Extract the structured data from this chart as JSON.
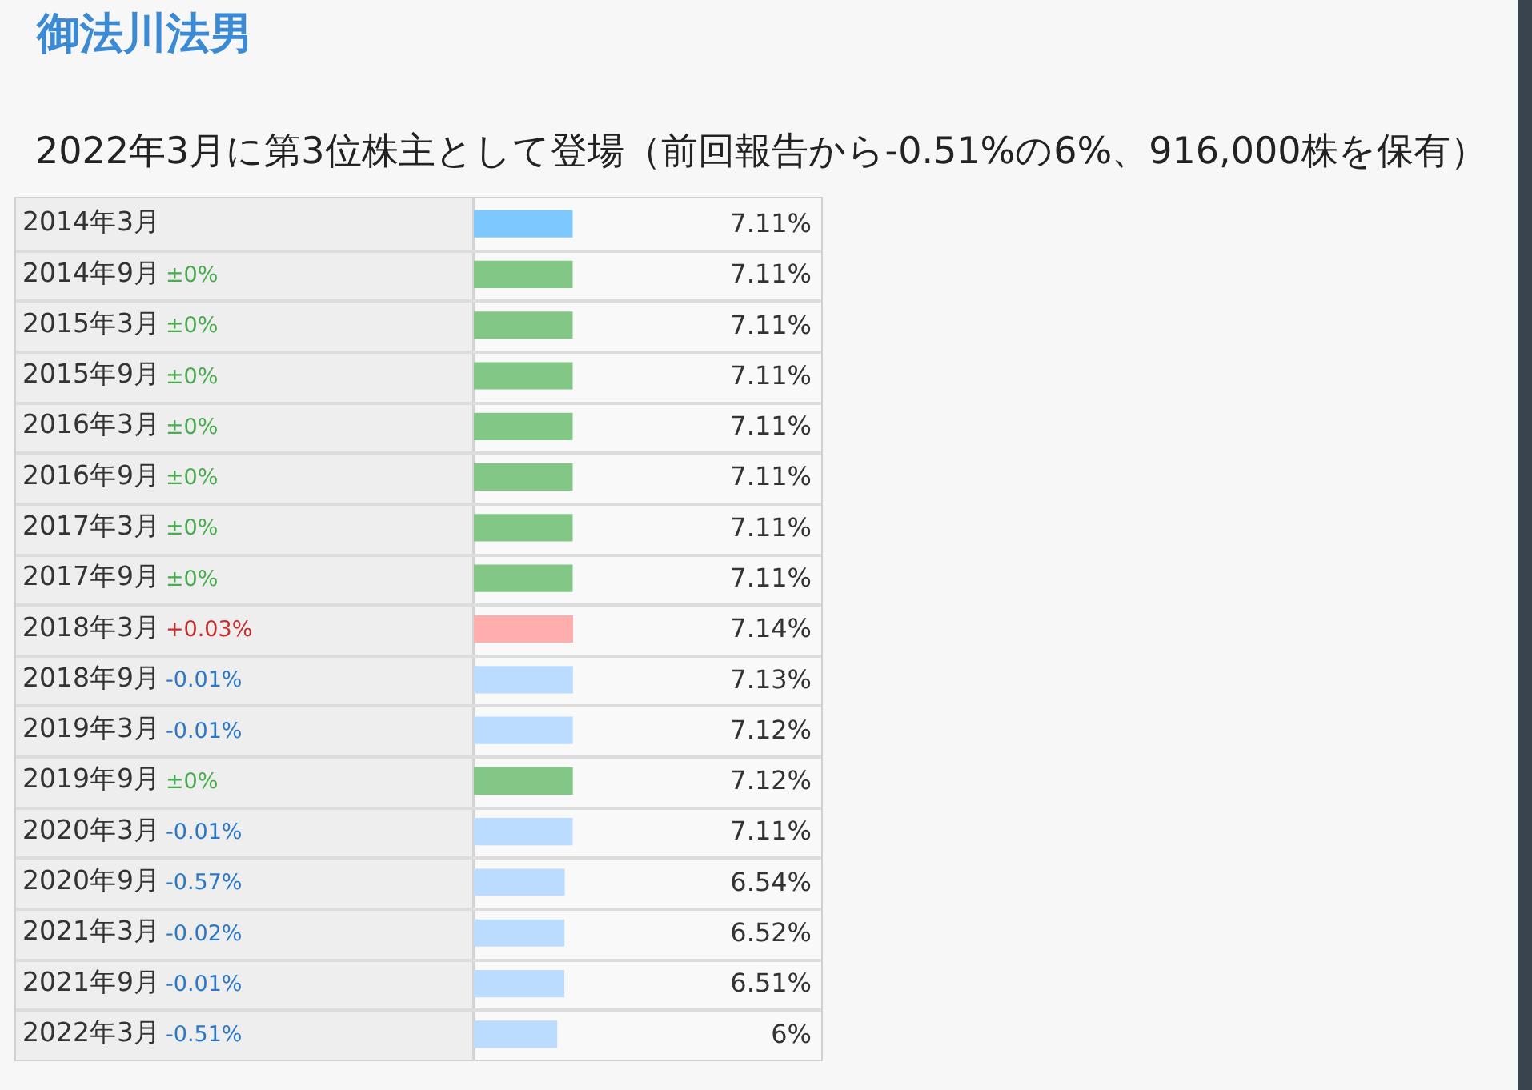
{
  "chart_data": {
    "type": "bar",
    "orientation": "horizontal",
    "title": "御法川法男",
    "subtitle": "2022年3月に第3位株主として登場（前回報告から-0.51%の6%、916,000株を保有）",
    "categories": [
      "2014年3月",
      "2014年9月",
      "2015年3月",
      "2015年9月",
      "2016年3月",
      "2016年9月",
      "2017年3月",
      "2017年9月",
      "2018年3月",
      "2018年9月",
      "2019年3月",
      "2019年9月",
      "2020年3月",
      "2020年9月",
      "2021年3月",
      "2021年9月",
      "2022年3月"
    ],
    "values": [
      7.11,
      7.11,
      7.11,
      7.11,
      7.11,
      7.11,
      7.11,
      7.11,
      7.14,
      7.13,
      7.12,
      7.12,
      7.11,
      6.54,
      6.52,
      6.51,
      6
    ],
    "colors": [
      "#7cc8ff",
      "#82c785",
      "#82c785",
      "#82c785",
      "#82c785",
      "#82c785",
      "#82c785",
      "#82c785",
      "#ffadad",
      "#bbdcff",
      "#bbdcff",
      "#82c785",
      "#bbdcff",
      "#bbdcff",
      "#bbdcff",
      "#bbdcff",
      "#bbdcff"
    ],
    "value_labels": [
      "7.11%",
      "7.11%",
      "7.11%",
      "7.11%",
      "7.11%",
      "7.11%",
      "7.11%",
      "7.11%",
      "7.14%",
      "7.13%",
      "7.12%",
      "7.12%",
      "7.11%",
      "6.54%",
      "6.52%",
      "6.51%",
      "6%"
    ],
    "annotations": [
      "±0%",
      "±0%",
      "±0%",
      "±0%",
      "±0%",
      "±0%",
      "±0%",
      "+0.03%",
      "-0.01%",
      "-0.01%",
      "±0%",
      "-0.01%",
      "-0.57%",
      "-0.02%",
      "-0.01%",
      "-0.51%"
    ]
  }
}
